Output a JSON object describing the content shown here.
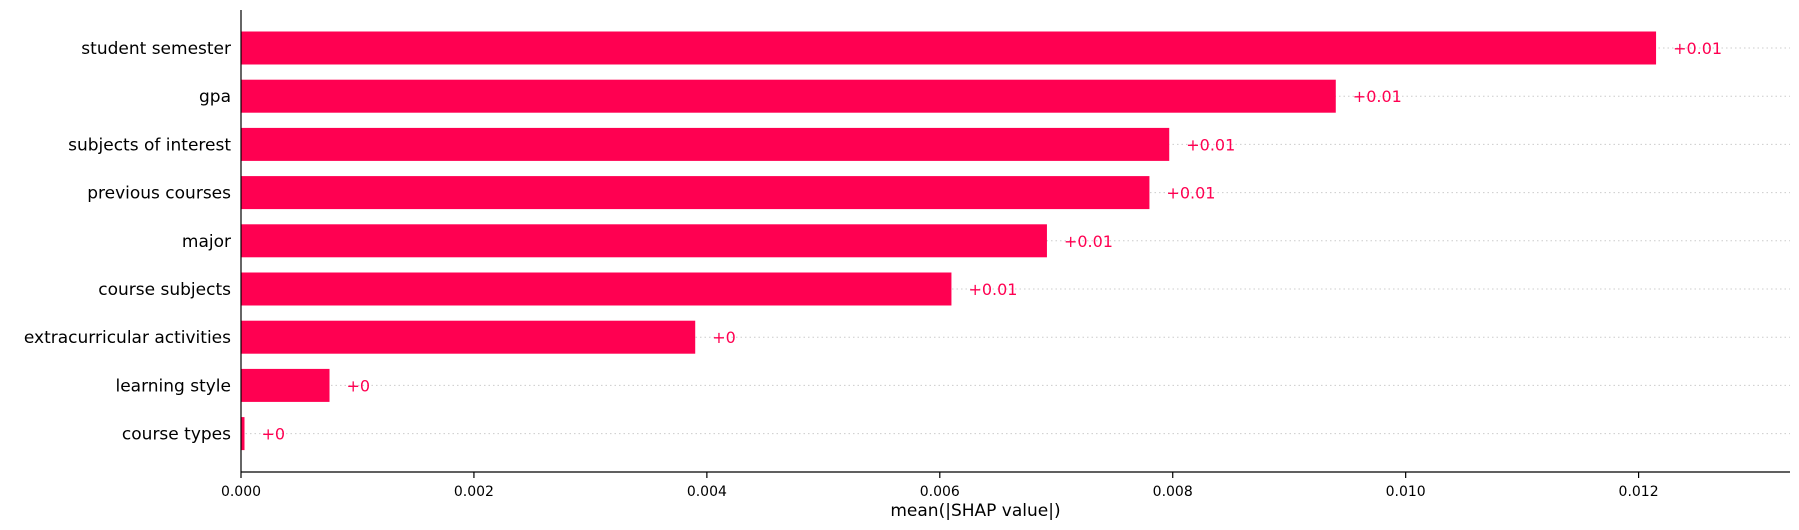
{
  "chart_data": {
    "type": "bar",
    "orientation": "horizontal",
    "categories": [
      "student semester",
      "gpa",
      "subjects of interest",
      "previous courses",
      "major",
      "course subjects",
      "extracurricular activities",
      "learning style",
      "course types"
    ],
    "values": [
      0.01215,
      0.0094,
      0.00797,
      0.0078,
      0.00692,
      0.0061,
      0.0039,
      0.00076,
      3e-05
    ],
    "value_labels": [
      "+0.01",
      "+0.01",
      "+0.01",
      "+0.01",
      "+0.01",
      "+0.01",
      "+0",
      "+0",
      "+0"
    ],
    "xlabel": "mean(|SHAP value|)",
    "ylabel": "",
    "xlim": [
      0,
      0.0133
    ],
    "xticks": [
      0.0,
      0.002,
      0.004,
      0.006,
      0.008,
      0.01,
      0.012
    ],
    "xtick_labels": [
      "0.000",
      "0.002",
      "0.004",
      "0.006",
      "0.008",
      "0.010",
      "0.012"
    ],
    "grid": "dotted horizontal lines per row",
    "colors": {
      "bar": "#ff0051",
      "label": "#ff0051",
      "grid": "#cccccc",
      "axis": "#000000"
    }
  }
}
